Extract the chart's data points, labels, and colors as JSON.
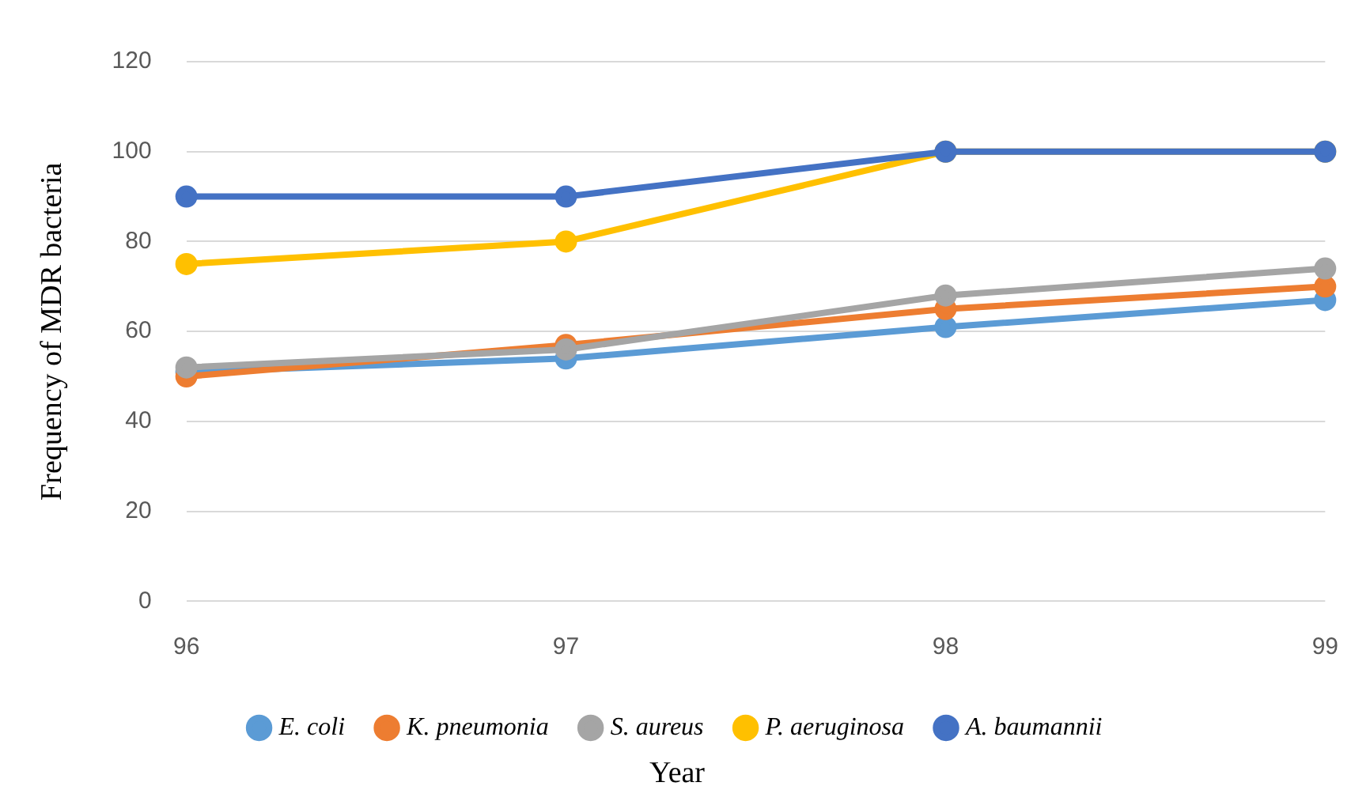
{
  "chart_data": {
    "type": "line",
    "xlabel": "Year",
    "ylabel": "Frequency of MDR bacteria",
    "categories": [
      "96",
      "97",
      "98",
      "99"
    ],
    "series": [
      {
        "name": "E. coli",
        "color": "#5b9bd5",
        "values": [
          51,
          54,
          61,
          67
        ]
      },
      {
        "name": "K. pneumonia",
        "color": "#ed7d31",
        "values": [
          50,
          57,
          65,
          70
        ]
      },
      {
        "name": "S. aureus",
        "color": "#a5a5a5",
        "values": [
          52,
          56,
          68,
          74
        ]
      },
      {
        "name": "P. aeruginosa",
        "color": "#ffc000",
        "values": [
          75,
          80,
          100,
          100
        ]
      },
      {
        "name": "A. baumannii",
        "color": "#4472c4",
        "values": [
          90,
          90,
          100,
          100
        ]
      }
    ],
    "ylim": [
      0,
      120
    ],
    "yticks": [
      0,
      20,
      40,
      60,
      80,
      100,
      120
    ],
    "grid": "y",
    "legend": "bottom",
    "marker": "circle",
    "line_style": "solid"
  }
}
